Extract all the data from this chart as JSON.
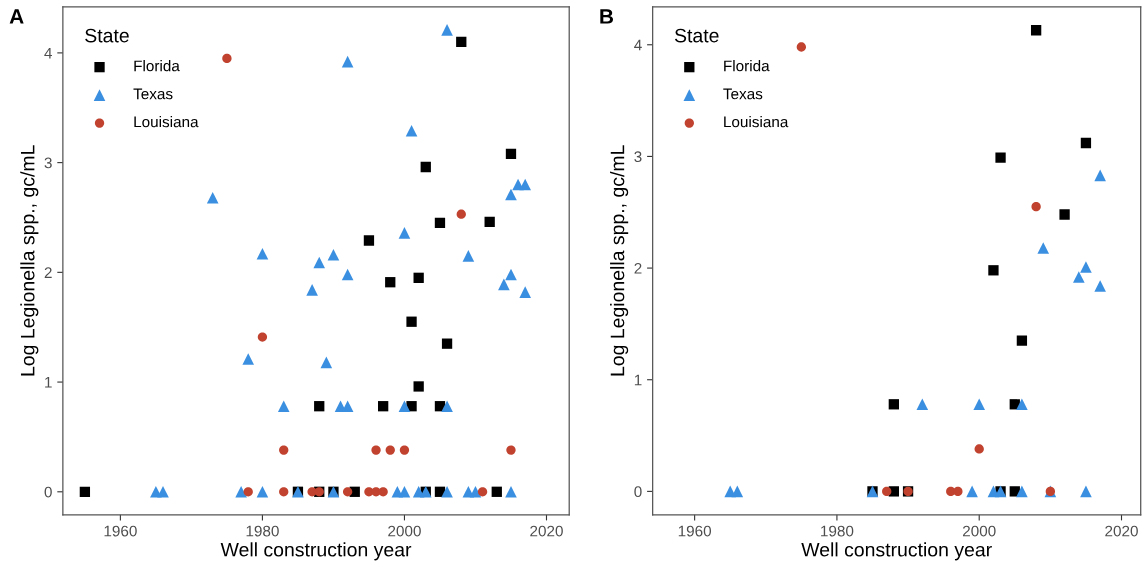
{
  "chart_data": [
    {
      "type": "scatter",
      "title": "A",
      "xlabel": "Well construction year",
      "ylabel": "Log Legionella spp., gc/mL",
      "legend_title": "State",
      "legend": "top left",
      "grid": false,
      "xlim": [
        1951.9,
        2023.2
      ],
      "xticks": [
        1960,
        1980,
        2000,
        2020
      ],
      "ylim": [
        -0.21,
        4.42
      ],
      "yticks": [
        0,
        1,
        2,
        3,
        4
      ],
      "series": [
        {
          "name": "Florida",
          "color": "#000000",
          "marker": "square",
          "x": [
            1955,
            1985,
            1988,
            1990,
            1993,
            2003,
            2005,
            2013,
            1988,
            1997,
            2001,
            2005,
            2002,
            2006,
            2001,
            1998,
            2002,
            1995,
            2005,
            2012,
            2003,
            2015,
            2008
          ],
          "values": [
            0,
            0,
            0,
            0,
            0,
            0,
            0,
            0,
            0.78,
            0.78,
            0.78,
            0.78,
            0.96,
            1.35,
            1.55,
            1.91,
            1.95,
            2.29,
            2.45,
            2.46,
            2.96,
            3.08,
            4.1
          ]
        },
        {
          "name": "Texas",
          "color": "#3b8fe0",
          "marker": "triangle",
          "x": [
            1965,
            1966,
            1977,
            1980,
            1985,
            1990,
            1999,
            2000,
            2002,
            2003,
            2006,
            2009,
            2010,
            2015,
            1983,
            1991,
            1992,
            2000,
            2006,
            1989,
            1978,
            1987,
            2017,
            2014,
            1992,
            2015,
            1988,
            2009,
            1990,
            1980,
            2000,
            1973,
            2015,
            2016,
            2017,
            2001,
            1992,
            2006
          ],
          "values": [
            0,
            0,
            0,
            0,
            0,
            0,
            0,
            0,
            0,
            0,
            0,
            0,
            0,
            0,
            0.78,
            0.78,
            0.78,
            0.78,
            0.78,
            1.18,
            1.21,
            1.84,
            1.82,
            1.89,
            1.98,
            1.98,
            2.09,
            2.15,
            2.16,
            2.17,
            2.36,
            2.68,
            2.71,
            2.8,
            2.8,
            3.29,
            3.92,
            4.21
          ]
        },
        {
          "name": "Louisiana",
          "color": "#c0422f",
          "marker": "circle",
          "x": [
            1978,
            1983,
            1987,
            1988,
            1992,
            1995,
            1996,
            1997,
            2011,
            1983,
            1996,
            1998,
            2000,
            2015,
            1980,
            2008,
            1975
          ],
          "values": [
            0,
            0,
            0,
            0,
            0,
            0,
            0,
            0,
            0,
            0.38,
            0.38,
            0.38,
            0.38,
            0.38,
            1.41,
            2.53,
            3.95
          ]
        }
      ]
    },
    {
      "type": "scatter",
      "title": "B",
      "xlabel": "Well construction year",
      "ylabel": "Log Legionella spp., gc/mL",
      "legend_title": "State",
      "legend": "top left",
      "grid": false,
      "xlim": [
        1954.1,
        2022.7
      ],
      "xticks": [
        1960,
        1980,
        2000,
        2020
      ],
      "ylim": [
        -0.21,
        4.34
      ],
      "yticks": [
        0,
        1,
        2,
        3,
        4
      ],
      "series": [
        {
          "name": "Florida",
          "color": "#000000",
          "marker": "square",
          "x": [
            1985,
            1988,
            1990,
            2003,
            2005,
            1988,
            2005,
            2006,
            2002,
            2012,
            2003,
            2015,
            2008
          ],
          "values": [
            0,
            0,
            0,
            0,
            0,
            0.78,
            0.78,
            1.35,
            1.98,
            2.48,
            2.99,
            3.12,
            4.13
          ]
        },
        {
          "name": "Texas",
          "color": "#3b8fe0",
          "marker": "triangle",
          "x": [
            1965,
            1966,
            1985,
            1999,
            2002,
            2003,
            2006,
            2010,
            2015,
            1992,
            2000,
            2006,
            2017,
            2014,
            2015,
            2009,
            2017
          ],
          "values": [
            0,
            0,
            0,
            0,
            0,
            0,
            0,
            0,
            0,
            0.78,
            0.78,
            0.78,
            1.84,
            1.92,
            2.01,
            2.18,
            2.83
          ]
        },
        {
          "name": "Louisiana",
          "color": "#c0422f",
          "marker": "circle",
          "x": [
            1987,
            1990,
            1996,
            1997,
            2010,
            2000,
            2008,
            1975
          ],
          "values": [
            0,
            0,
            0,
            0,
            0,
            0.38,
            2.55,
            3.98
          ]
        }
      ]
    }
  ]
}
